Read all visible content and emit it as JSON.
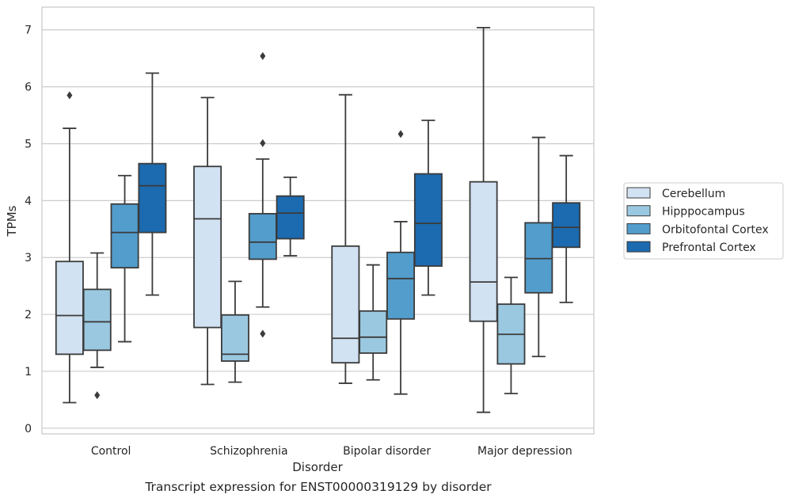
{
  "caption": "Transcript expression for ENST00000319129 by disorder",
  "chart_data": {
    "type": "box",
    "xlabel": "Disorder",
    "ylabel": "TPMs",
    "ylim": [
      -0.1,
      7.4
    ],
    "yticks": [
      0,
      1,
      2,
      3,
      4,
      5,
      6,
      7
    ],
    "grid": "horizontal",
    "legend_position": "right",
    "categories": [
      "Control",
      "Schizophrenia",
      "Bipolar disorder",
      "Major depression"
    ],
    "series": [
      {
        "name": "Cerebellum",
        "color": "#d1e2f2",
        "boxes": [
          {
            "whislo": 0.45,
            "q1": 1.3,
            "med": 1.98,
            "q3": 2.93,
            "whishi": 5.27,
            "fliers": [
              5.85
            ]
          },
          {
            "whislo": 0.77,
            "q1": 1.77,
            "med": 3.68,
            "q3": 4.6,
            "whishi": 5.81,
            "fliers": []
          },
          {
            "whislo": 0.79,
            "q1": 1.15,
            "med": 1.58,
            "q3": 3.2,
            "whishi": 5.86,
            "fliers": []
          },
          {
            "whislo": 0.28,
            "q1": 1.88,
            "med": 2.57,
            "q3": 4.33,
            "whishi": 7.04,
            "fliers": []
          }
        ]
      },
      {
        "name": "Hipppocampus",
        "color": "#9ac8e0",
        "boxes": [
          {
            "whislo": 1.07,
            "q1": 1.37,
            "med": 1.87,
            "q3": 2.44,
            "whishi": 3.08,
            "fliers": [
              0.58
            ]
          },
          {
            "whislo": 0.81,
            "q1": 1.18,
            "med": 1.3,
            "q3": 1.99,
            "whishi": 2.58,
            "fliers": []
          },
          {
            "whislo": 0.85,
            "q1": 1.32,
            "med": 1.6,
            "q3": 2.06,
            "whishi": 2.87,
            "fliers": []
          },
          {
            "whislo": 0.61,
            "q1": 1.13,
            "med": 1.65,
            "q3": 2.18,
            "whishi": 2.65,
            "fliers": []
          }
        ]
      },
      {
        "name": "Orbitofontal Cortex",
        "color": "#529dcc",
        "boxes": [
          {
            "whislo": 1.52,
            "q1": 2.82,
            "med": 3.44,
            "q3": 3.94,
            "whishi": 4.44,
            "fliers": []
          },
          {
            "whislo": 2.13,
            "q1": 2.97,
            "med": 3.27,
            "q3": 3.77,
            "whishi": 4.73,
            "fliers": [
              6.54,
              5.01,
              1.66
            ]
          },
          {
            "whislo": 0.6,
            "q1": 1.92,
            "med": 2.63,
            "q3": 3.09,
            "whishi": 3.63,
            "fliers": [
              5.17
            ]
          },
          {
            "whislo": 1.26,
            "q1": 2.38,
            "med": 2.98,
            "q3": 3.61,
            "whishi": 5.11,
            "fliers": []
          }
        ]
      },
      {
        "name": "Prefrontal Cortex",
        "color": "#1c6aaf",
        "boxes": [
          {
            "whislo": 2.34,
            "q1": 3.44,
            "med": 4.26,
            "q3": 4.65,
            "whishi": 6.24,
            "fliers": []
          },
          {
            "whislo": 3.03,
            "q1": 3.33,
            "med": 3.78,
            "q3": 4.08,
            "whishi": 4.41,
            "fliers": []
          },
          {
            "whislo": 2.34,
            "q1": 2.85,
            "med": 3.6,
            "q3": 4.47,
            "whishi": 5.41,
            "fliers": []
          },
          {
            "whislo": 2.21,
            "q1": 3.18,
            "med": 3.53,
            "q3": 3.96,
            "whishi": 4.79,
            "fliers": []
          }
        ]
      }
    ]
  }
}
